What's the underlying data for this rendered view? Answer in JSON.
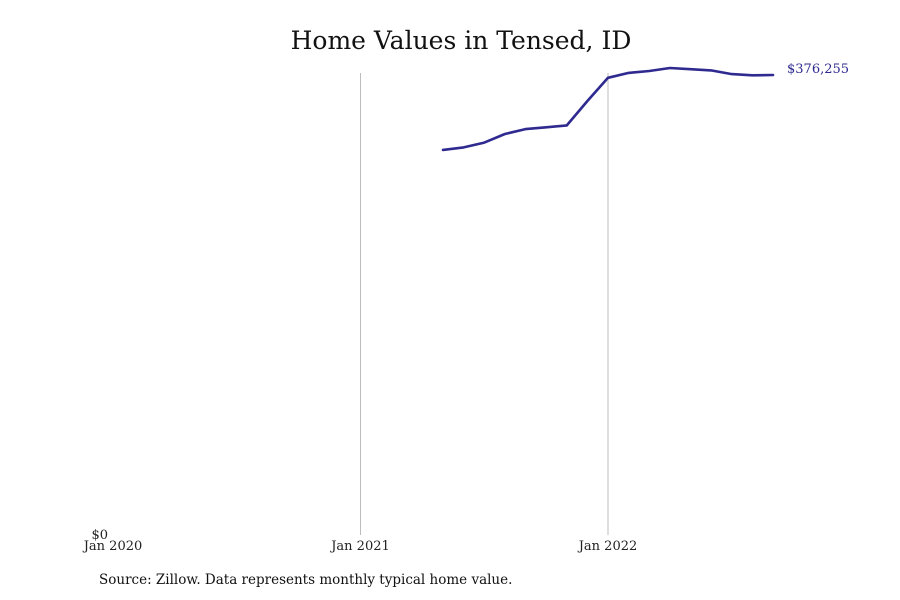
{
  "chart_data": {
    "type": "line",
    "title": "Home Values in Tensed, ID",
    "xlabel": "",
    "ylabel": "",
    "x_tick_labels": [
      "Jan 2020",
      "Jan 2021",
      "Jan 2022"
    ],
    "y_tick_labels": [
      "$0"
    ],
    "ylim": [
      0,
      376255
    ],
    "xlim": [
      "2020-01",
      "2022-12"
    ],
    "grid": "vertical lines at yearly ticks",
    "legend": "none",
    "line_color": "#2e2a8f",
    "end_label": "$376,255",
    "series": [
      {
        "x": [
          "2021-05",
          "2021-06",
          "2021-07",
          "2021-08",
          "2021-09",
          "2021-10",
          "2021-11",
          "2021-12",
          "2022-01",
          "2022-02",
          "2022-03",
          "2022-04",
          "2022-05",
          "2022-06",
          "2022-07",
          "2022-08",
          "2022-09"
        ],
        "values": [
          315000,
          317000,
          321000,
          328000,
          332000,
          333500,
          335000,
          355000,
          374000,
          378000,
          379500,
          382000,
          381000,
          380000,
          377000,
          376000,
          376255
        ]
      }
    ]
  },
  "source": "Source: Zillow. Data represents monthly typical home value."
}
